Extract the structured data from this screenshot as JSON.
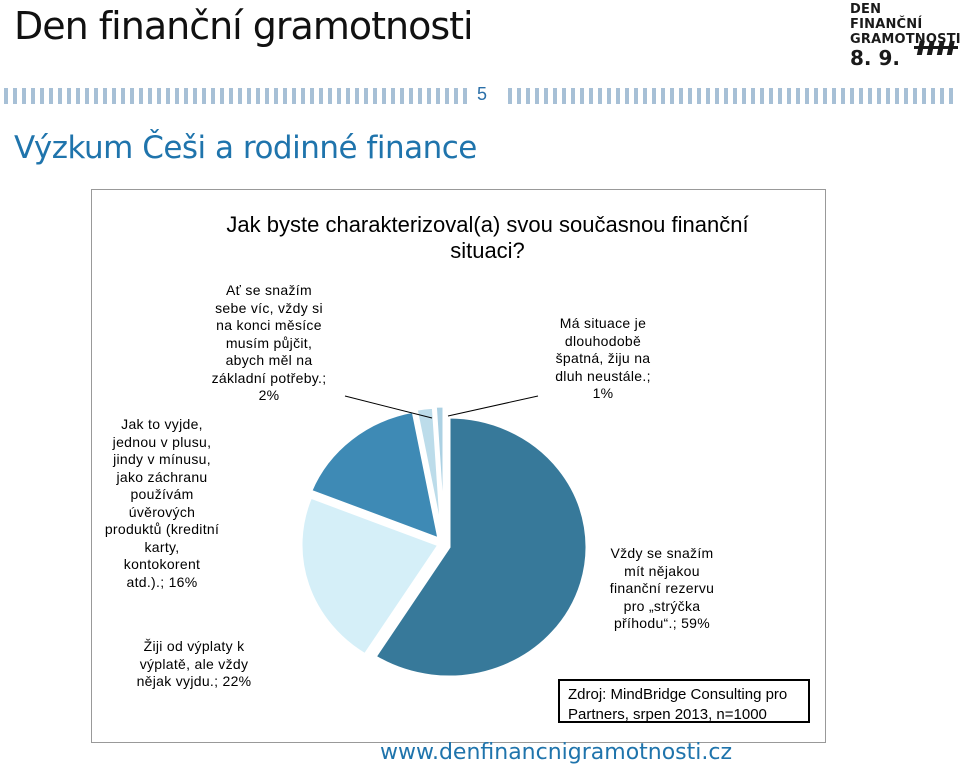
{
  "header": {
    "title": "Den finanční gramotnosti",
    "slide_number": "5",
    "subtitle": "Výzkum Češi a rodinné finance"
  },
  "logo": {
    "line1": "DEN FINANČNÍ",
    "line2": "GRAMOTNOSTI",
    "date": "8. 9."
  },
  "colors": {
    "accent": "#1f74ac",
    "stripes": "#a7c0d6"
  },
  "chart_data": {
    "type": "pie",
    "title": "Jak byste charakterizoval(a) svou současnou finanční situaci?",
    "slices": [
      {
        "label": "Vždy se snažím mít nějakou finanční rezervu pro „strýčka příhodu“.; 59%",
        "value": 59,
        "color": "#37799a"
      },
      {
        "label": "Žiji od výplaty k výplatě, ale vždy nějak vyjdu.; 22%",
        "value": 22,
        "color": "#d5eff8"
      },
      {
        "label": "Jak to vyjde, jednou v plusu, jindy v mínusu, jako záchranu používám úvěrových produktů (kreditní karty, kontokorent atd.).; 16%",
        "value": 16,
        "color": "#3e8ab5"
      },
      {
        "label": "Ať se snažím sebe víc, vždy si na konci měsíce musím půjčit, abych měl na základní potřeby.; 2%",
        "value": 2,
        "color": "#bcdcea"
      },
      {
        "label": "Má situace je dlouhodobě špatná, žiju na dluh neustále.; 1%",
        "value": 1,
        "color": "#acd1e3"
      }
    ]
  },
  "labels": {
    "slice59": [
      "Vždy se snažím",
      "mít nějakou",
      "finanční rezervu",
      "pro „strýčka",
      "příhodu“.; 59%"
    ],
    "slice22": [
      "Žiji od výplaty k",
      "výplatě, ale vždy",
      "nějak vyjdu.; 22%"
    ],
    "slice16": [
      "Jak to vyjde,",
      "jednou v plusu,",
      "jindy v mínusu,",
      "jako záchranu",
      "používám",
      "úvěrových",
      "produktů (kreditní",
      "karty,",
      "kontokorent",
      "atd.).; 16%"
    ],
    "slice2": [
      "Ať se snažím",
      "sebe víc, vždy si",
      "na konci měsíce",
      "musím půjčit,",
      "abych měl na",
      "základní potřeby.;",
      "2%"
    ],
    "slice1": [
      "Má situace je",
      "dlouhodobě",
      "špatná, žiju na",
      "dluh neustále.;",
      "1%"
    ]
  },
  "source": {
    "line1": "Zdroj: MindBridge Consulting pro",
    "line2": "Partners, srpen 2013, n=1000"
  },
  "footer": {
    "url": "www.denfinancnigramotnosti.cz"
  }
}
